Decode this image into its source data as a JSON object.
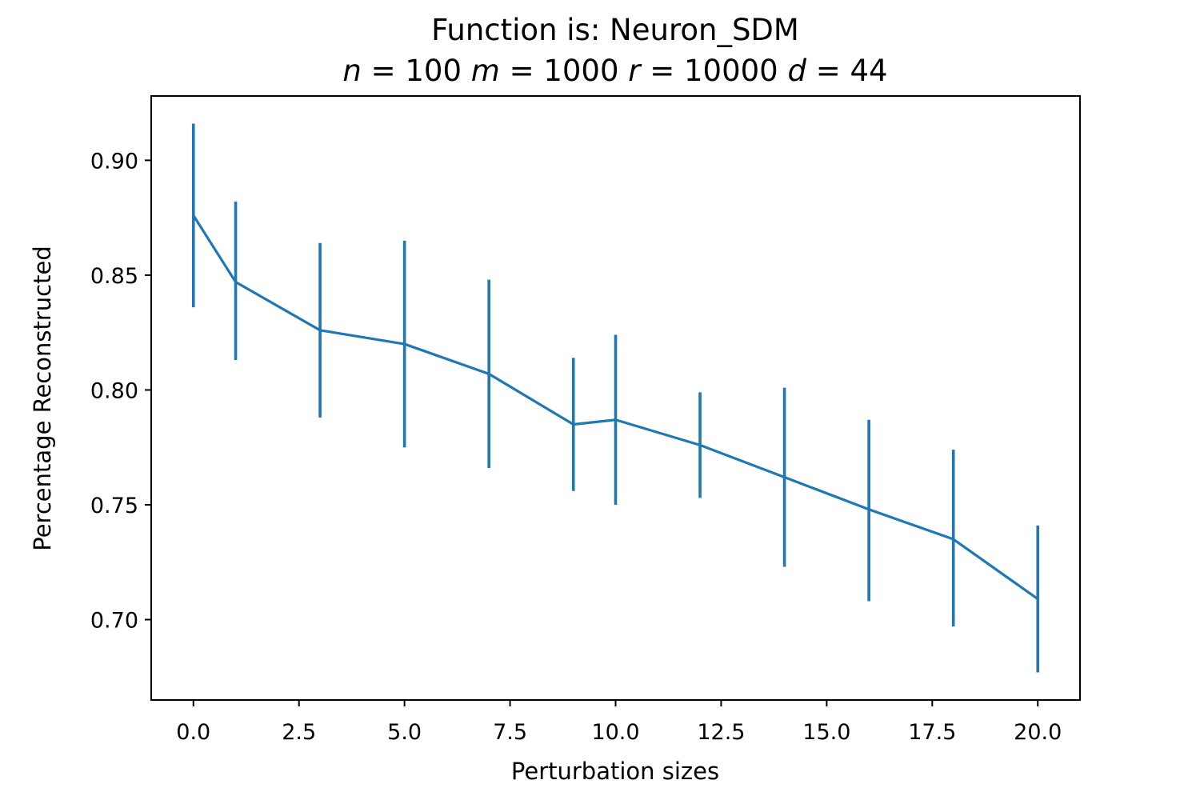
{
  "chart_data": {
    "type": "line",
    "title": "Function is: Neuron_SDM",
    "subtitle": {
      "text": "n = 100 m = 1000 r = 10000 d = 44",
      "parts": [
        {
          "var": "n",
          "value": "100"
        },
        {
          "var": "m",
          "value": "1000"
        },
        {
          "var": "r",
          "value": "10000"
        },
        {
          "var": "d",
          "value": "44"
        }
      ]
    },
    "xlabel": "Perturbation sizes",
    "ylabel": "Percentage Reconstructed",
    "xlim": [
      -1.0,
      21.0
    ],
    "ylim": [
      0.665,
      0.928
    ],
    "xticks": [
      "0.0",
      "2.5",
      "5.0",
      "7.5",
      "10.0",
      "12.5",
      "15.0",
      "17.5",
      "20.0"
    ],
    "yticks": [
      "0.70",
      "0.75",
      "0.80",
      "0.85",
      "0.90"
    ],
    "grid": false,
    "line_color": "#1f77b4",
    "series": [
      {
        "x": [
          0,
          1,
          3,
          5,
          7,
          9,
          10,
          12,
          14,
          16,
          18,
          20
        ],
        "y": [
          0.876,
          0.847,
          0.826,
          0.82,
          0.807,
          0.785,
          0.787,
          0.776,
          0.762,
          0.748,
          0.735,
          0.709
        ],
        "yerr_low": [
          0.836,
          0.813,
          0.788,
          0.775,
          0.766,
          0.756,
          0.75,
          0.753,
          0.723,
          0.708,
          0.697,
          0.677
        ],
        "yerr_high": [
          0.916,
          0.882,
          0.864,
          0.865,
          0.848,
          0.814,
          0.824,
          0.799,
          0.801,
          0.787,
          0.774,
          0.741
        ]
      }
    ]
  }
}
